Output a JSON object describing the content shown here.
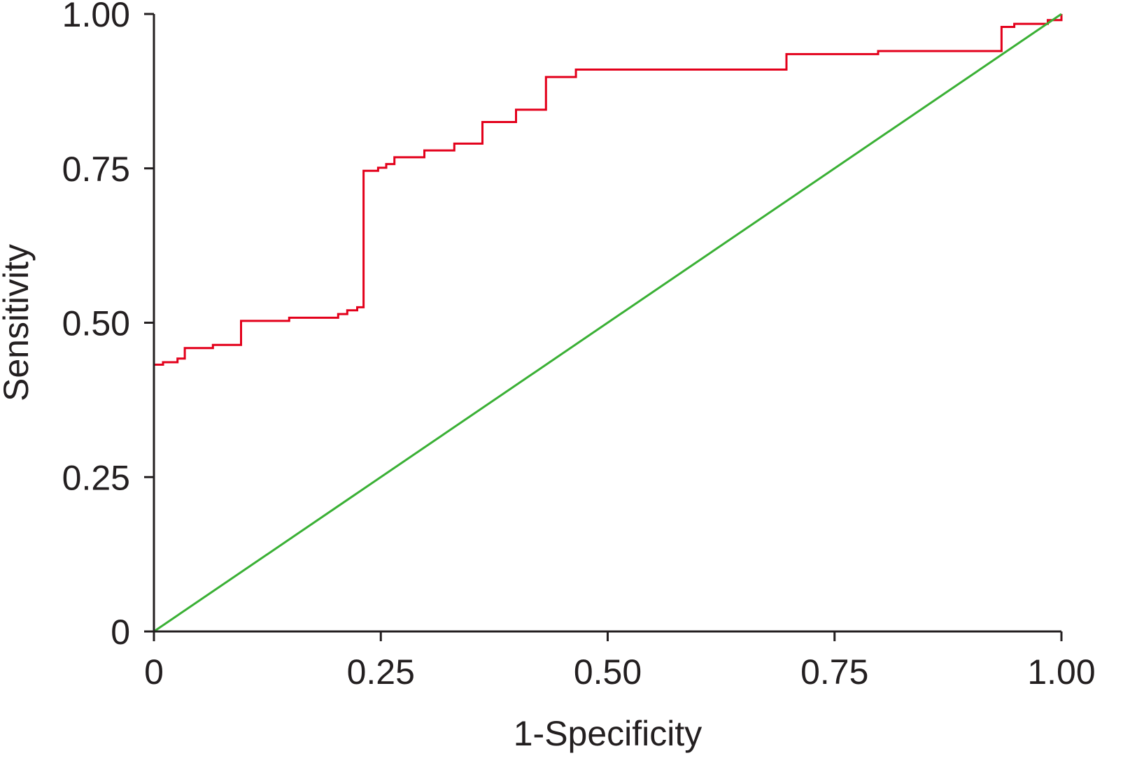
{
  "chart_data": {
    "type": "line",
    "title": "",
    "xlabel": "1-Specificity",
    "ylabel": "Sensitivity",
    "xlim": [
      0,
      1
    ],
    "ylim": [
      0,
      1
    ],
    "grid": false,
    "x_ticks": [
      {
        "value": 0,
        "label": "0"
      },
      {
        "value": 0.25,
        "label": "0.25"
      },
      {
        "value": 0.5,
        "label": "0.50"
      },
      {
        "value": 0.75,
        "label": "0.75"
      },
      {
        "value": 1,
        "label": "1.00"
      }
    ],
    "y_ticks": [
      {
        "value": 0,
        "label": "0"
      },
      {
        "value": 0.25,
        "label": "0.25"
      },
      {
        "value": 0.5,
        "label": "0.50"
      },
      {
        "value": 0.75,
        "label": "0.75"
      },
      {
        "value": 1,
        "label": "1.00"
      }
    ],
    "series": [
      {
        "style": "step",
        "color": "#e3001b",
        "points": [
          [
            0.0,
            0.432
          ],
          [
            0.01,
            0.432
          ],
          [
            0.01,
            0.436
          ],
          [
            0.026,
            0.436
          ],
          [
            0.026,
            0.442
          ],
          [
            0.034,
            0.442
          ],
          [
            0.034,
            0.459
          ],
          [
            0.065,
            0.459
          ],
          [
            0.065,
            0.464
          ],
          [
            0.096,
            0.464
          ],
          [
            0.096,
            0.503
          ],
          [
            0.149,
            0.503
          ],
          [
            0.149,
            0.508
          ],
          [
            0.203,
            0.508
          ],
          [
            0.203,
            0.514
          ],
          [
            0.213,
            0.514
          ],
          [
            0.213,
            0.52
          ],
          [
            0.224,
            0.52
          ],
          [
            0.224,
            0.525
          ],
          [
            0.231,
            0.525
          ],
          [
            0.231,
            0.746
          ],
          [
            0.247,
            0.746
          ],
          [
            0.247,
            0.751
          ],
          [
            0.256,
            0.751
          ],
          [
            0.256,
            0.757
          ],
          [
            0.265,
            0.757
          ],
          [
            0.265,
            0.768
          ],
          [
            0.298,
            0.768
          ],
          [
            0.298,
            0.779
          ],
          [
            0.331,
            0.779
          ],
          [
            0.331,
            0.79
          ],
          [
            0.362,
            0.79
          ],
          [
            0.362,
            0.825
          ],
          [
            0.399,
            0.825
          ],
          [
            0.399,
            0.845
          ],
          [
            0.432,
            0.845
          ],
          [
            0.432,
            0.898
          ],
          [
            0.465,
            0.898
          ],
          [
            0.465,
            0.91
          ],
          [
            0.697,
            0.91
          ],
          [
            0.697,
            0.935
          ],
          [
            0.798,
            0.935
          ],
          [
            0.798,
            0.94
          ],
          [
            0.934,
            0.94
          ],
          [
            0.934,
            0.979
          ],
          [
            0.948,
            0.979
          ],
          [
            0.948,
            0.984
          ],
          [
            0.985,
            0.984
          ],
          [
            0.985,
            0.99
          ],
          [
            1.0,
            0.99
          ],
          [
            1.0,
            1.0
          ]
        ]
      },
      {
        "style": "line",
        "color": "#3ab035",
        "points": [
          [
            0,
            0
          ],
          [
            1,
            1
          ]
        ]
      }
    ]
  }
}
